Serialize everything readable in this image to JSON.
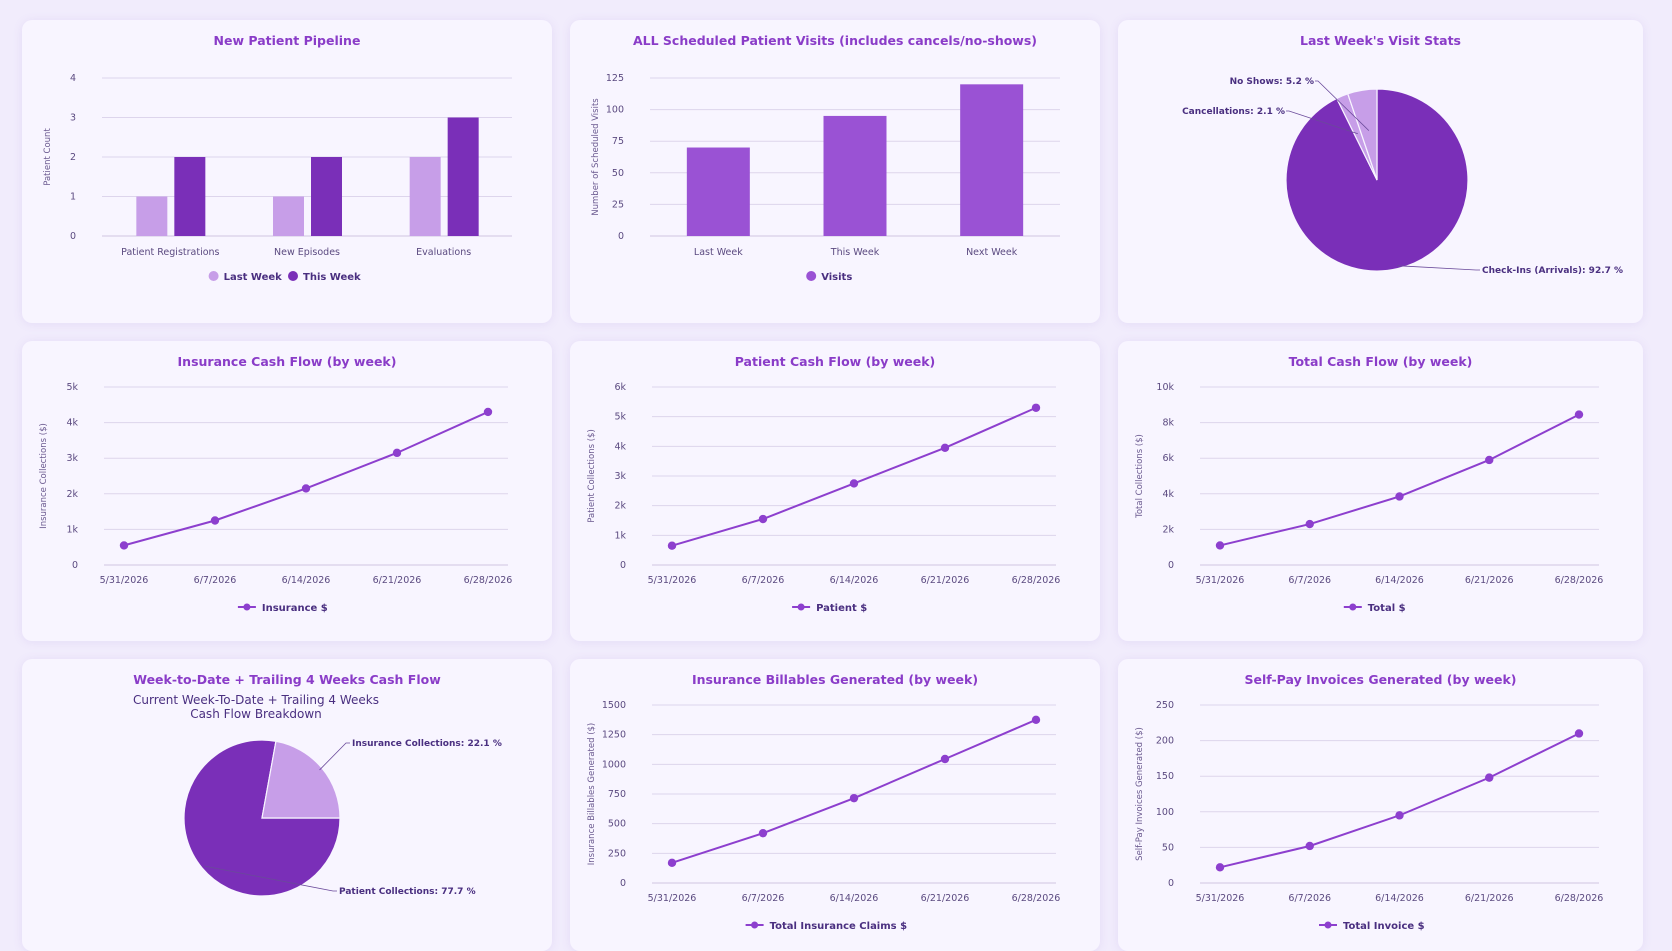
{
  "colors": {
    "light": "#c79ee8",
    "dark": "#7a2fb8",
    "mid": "#9a52d4",
    "line": "#8d3fce",
    "title": "#8a3cc8"
  },
  "charts": [
    {
      "type": "bar",
      "title": "New Patient Pipeline",
      "ylabel": "Patient Count",
      "ylim": [
        0,
        4
      ],
      "yticks": [
        "0",
        "1",
        "2",
        "3",
        "4"
      ],
      "categories": [
        "Patient Registrations",
        "New Episodes",
        "Evaluations"
      ],
      "series": [
        {
          "name": "Last Week",
          "values": [
            1,
            1,
            2
          ]
        },
        {
          "name": "This Week",
          "values": [
            2,
            2,
            3
          ]
        }
      ],
      "legend_position": "bottom"
    },
    {
      "type": "bar",
      "title": "ALL Scheduled Patient Visits (includes cancels/no-shows)",
      "ylabel": "Number of Scheduled Visits",
      "ylim": [
        0,
        125
      ],
      "yticks": [
        "0",
        "25",
        "50",
        "75",
        "100",
        "125"
      ],
      "categories": [
        "Last Week",
        "This Week",
        "Next Week"
      ],
      "series": [
        {
          "name": "Visits",
          "values": [
            70,
            95,
            120
          ]
        }
      ],
      "legend_position": "bottom"
    },
    {
      "type": "pie",
      "title": "Last Week's Visit Stats",
      "slices": [
        {
          "label": "Check-Ins (Arrivals): 92.7 %",
          "value": 92.7
        },
        {
          "label": "Cancellations: 2.1 %",
          "value": 2.1
        },
        {
          "label": "No Shows: 5.2 %",
          "value": 5.2
        }
      ]
    },
    {
      "type": "line",
      "title": "Insurance Cash Flow (by week)",
      "ylabel": "Insurance Collections ($)",
      "ylim": [
        0,
        5000
      ],
      "yticks": [
        "0",
        "1k",
        "2k",
        "3k",
        "4k",
        "5k"
      ],
      "x": [
        "5/31/2026",
        "6/7/2026",
        "6/14/2026",
        "6/21/2026",
        "6/28/2026"
      ],
      "series": [
        {
          "name": "Insurance $",
          "values": [
            550,
            1250,
            2150,
            3150,
            4300
          ]
        }
      ],
      "legend_position": "bottom"
    },
    {
      "type": "line",
      "title": "Patient Cash Flow (by week)",
      "ylabel": "Patient Collections ($)",
      "ylim": [
        0,
        6000
      ],
      "yticks": [
        "0",
        "1k",
        "2k",
        "3k",
        "4k",
        "5k",
        "6k"
      ],
      "x": [
        "5/31/2026",
        "6/7/2026",
        "6/14/2026",
        "6/21/2026",
        "6/28/2026"
      ],
      "series": [
        {
          "name": "Patient $",
          "values": [
            650,
            1550,
            2750,
            3950,
            5300
          ]
        }
      ],
      "legend_position": "bottom"
    },
    {
      "type": "line",
      "title": "Total Cash Flow (by week)",
      "ylabel": "Total Collections ($)",
      "ylim": [
        0,
        10000
      ],
      "yticks": [
        "0",
        "2k",
        "4k",
        "6k",
        "8k",
        "10k"
      ],
      "x": [
        "5/31/2026",
        "6/7/2026",
        "6/14/2026",
        "6/21/2026",
        "6/28/2026"
      ],
      "series": [
        {
          "name": "Total $",
          "values": [
            1100,
            2300,
            3850,
            5900,
            8450
          ]
        }
      ],
      "legend_position": "bottom"
    },
    {
      "type": "pie",
      "title": "Week-to-Date + Trailing 4 Weeks Cash Flow",
      "subtitle": [
        "Current Week-To-Date + Trailing 4 Weeks",
        "Cash Flow Breakdown"
      ],
      "slices": [
        {
          "label": "Patient Collections: 77.7 %",
          "value": 77.7
        },
        {
          "label": "Insurance Collections: 22.1 %",
          "value": 22.1
        }
      ]
    },
    {
      "type": "line",
      "title": "Insurance Billables Generated (by week)",
      "ylabel": "Insurance Billables Generated ($)",
      "ylim": [
        0,
        1500
      ],
      "yticks": [
        "0",
        "250",
        "500",
        "750",
        "1000",
        "1250",
        "1500"
      ],
      "x": [
        "5/31/2026",
        "6/7/2026",
        "6/14/2026",
        "6/21/2026",
        "6/28/2026"
      ],
      "series": [
        {
          "name": "Total Insurance Claims $",
          "values": [
            170,
            420,
            715,
            1045,
            1375
          ]
        }
      ],
      "legend_position": "bottom"
    },
    {
      "type": "line",
      "title": "Self-Pay Invoices Generated (by week)",
      "ylabel": "Self-Pay Invoices Generated ($)",
      "ylim": [
        0,
        250
      ],
      "yticks": [
        "0",
        "50",
        "100",
        "150",
        "200",
        "250"
      ],
      "x": [
        "5/31/2026",
        "6/7/2026",
        "6/14/2026",
        "6/21/2026",
        "6/28/2026"
      ],
      "series": [
        {
          "name": "Total Invoice $",
          "values": [
            22,
            52,
            95,
            148,
            210
          ]
        }
      ],
      "legend_position": "bottom"
    }
  ]
}
